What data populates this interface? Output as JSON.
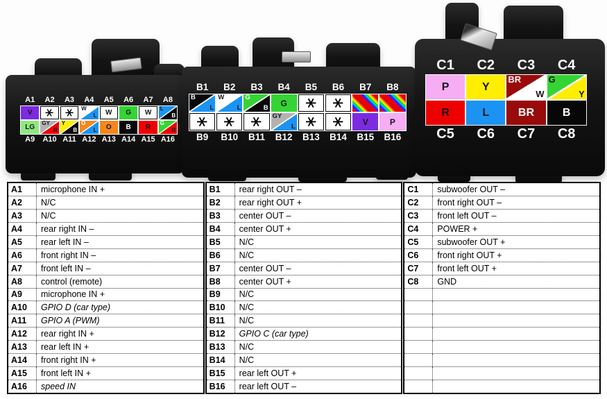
{
  "colors": {
    "V": "#7c2be0",
    "LG": "#8fe87f",
    "GY": "#b2b2b2",
    "Y": "#ffee00",
    "O": "#f5871f",
    "B": "#070707",
    "R": "#ef0000",
    "G": "#35d435",
    "L": "#1b93f2",
    "W": "#ffffff",
    "P": "#f6adf3",
    "BR": "#990a0a"
  },
  "star_char": "∗",
  "connectors": [
    {
      "id": "A",
      "top_labels": [
        "A1",
        "A2",
        "A3",
        "A4",
        "A5",
        "A6",
        "A7",
        "A8"
      ],
      "bottom_labels": [
        "A9",
        "A10",
        "A11",
        "A12",
        "A13",
        "A14",
        "A15",
        "A16"
      ],
      "rows": [
        [
          {
            "id": "A1",
            "type": "solid",
            "c": "V",
            "t": "V"
          },
          {
            "id": "A2",
            "type": "star"
          },
          {
            "id": "A3",
            "type": "star"
          },
          {
            "id": "A4",
            "type": "split",
            "c1": "W",
            "c2": "L",
            "t1": "W",
            "t2": "L"
          },
          {
            "id": "A5",
            "type": "solid",
            "c": "W",
            "t": "W"
          },
          {
            "id": "A6",
            "type": "solid",
            "c": "G",
            "t": "G"
          },
          {
            "id": "A7",
            "type": "solid",
            "c": "W",
            "t": "W"
          },
          {
            "id": "A8",
            "type": "split",
            "c1": "L",
            "c2": "B",
            "t1": "L",
            "t2": "B"
          }
        ],
        [
          {
            "id": "A9",
            "type": "solid",
            "c": "LG",
            "t": "LG"
          },
          {
            "id": "A10",
            "type": "split",
            "c1": "GY",
            "c2": "R",
            "t1": "GY",
            "t2": "R"
          },
          {
            "id": "A11",
            "type": "split",
            "c1": "Y",
            "c2": "B",
            "t1": "Y",
            "t2": "B"
          },
          {
            "id": "A12",
            "type": "split",
            "c1": "O",
            "c2": "L",
            "t1": "O",
            "t2": "L",
            "t1c": "#ffffff"
          },
          {
            "id": "A13",
            "type": "solid",
            "c": "O",
            "t": "O"
          },
          {
            "id": "A14",
            "type": "solid",
            "c": "B",
            "t": "B"
          },
          {
            "id": "A15",
            "type": "solid",
            "c": "R",
            "t": "R"
          },
          {
            "id": "A16",
            "type": "split",
            "c1": "G",
            "c2": "R",
            "t1": "G",
            "t2": "R",
            "t1c": "#ffffff"
          }
        ]
      ]
    },
    {
      "id": "B",
      "top_labels": [
        "B1",
        "B2",
        "B3",
        "B4",
        "B5",
        "B6",
        "B7",
        "B8"
      ],
      "bottom_labels": [
        "B9",
        "B10",
        "B11",
        "B12",
        "B13",
        "B14",
        "B15",
        "B16"
      ],
      "rows": [
        [
          {
            "id": "B1",
            "type": "split",
            "c1": "B",
            "c2": "L",
            "t1": "B",
            "t2": "L"
          },
          {
            "id": "B2",
            "type": "split",
            "c1": "W",
            "c2": "L",
            "t1": "W",
            "t2": "L"
          },
          {
            "id": "B3",
            "type": "split",
            "c1": "G",
            "c2": "B",
            "t1": "G",
            "t2": "B",
            "t1c": "#ffffff"
          },
          {
            "id": "B4",
            "type": "solid",
            "c": "G",
            "t": "G"
          },
          {
            "id": "B5",
            "type": "star"
          },
          {
            "id": "B6",
            "type": "star"
          },
          {
            "id": "B7",
            "type": "rainbow"
          },
          {
            "id": "B8",
            "type": "rainbow"
          }
        ],
        [
          {
            "id": "B9",
            "type": "star"
          },
          {
            "id": "B10",
            "type": "star"
          },
          {
            "id": "B11",
            "type": "star"
          },
          {
            "id": "B12",
            "type": "split",
            "c1": "GY",
            "c2": "L",
            "t1": "GY",
            "t2": "L"
          },
          {
            "id": "B13",
            "type": "star"
          },
          {
            "id": "B14",
            "type": "star"
          },
          {
            "id": "B15",
            "type": "solid",
            "c": "V",
            "t": "V"
          },
          {
            "id": "B16",
            "type": "solid",
            "c": "P",
            "t": "P"
          }
        ]
      ]
    },
    {
      "id": "C",
      "top_labels": [
        "C1",
        "C2",
        "C3",
        "C4"
      ],
      "bottom_labels": [
        "C5",
        "C6",
        "C7",
        "C8"
      ],
      "rows": [
        [
          {
            "id": "C1",
            "type": "solid",
            "c": "P",
            "t": "P"
          },
          {
            "id": "C2",
            "type": "solid",
            "c": "Y",
            "t": "Y"
          },
          {
            "id": "C3",
            "type": "split",
            "c1": "BR",
            "c2": "W",
            "t1": "BR",
            "t2": "W"
          },
          {
            "id": "C4",
            "type": "split",
            "c1": "G",
            "c2": "Y",
            "t1": "G",
            "t2": "Y"
          }
        ],
        [
          {
            "id": "C5",
            "type": "solid",
            "c": "R",
            "t": "R"
          },
          {
            "id": "C6",
            "type": "solid",
            "c": "L",
            "t": "L"
          },
          {
            "id": "C7",
            "type": "solid",
            "c": "BR",
            "t": "BR"
          },
          {
            "id": "C8",
            "type": "solid",
            "c": "B",
            "t": "B"
          }
        ]
      ]
    }
  ],
  "table": {
    "groups": [
      {
        "id": "A",
        "rows": [
          {
            "pin": "A1",
            "desc": "microphone IN +"
          },
          {
            "pin": "A2",
            "desc": "N/C"
          },
          {
            "pin": "A3",
            "desc": "N/C"
          },
          {
            "pin": "A4",
            "desc": "rear right IN –"
          },
          {
            "pin": "A5",
            "desc": "rear left IN –"
          },
          {
            "pin": "A6",
            "desc": "front right IN –"
          },
          {
            "pin": "A7",
            "desc": "front left IN –"
          },
          {
            "pin": "A8",
            "desc": "control (remote)"
          },
          {
            "pin": "A9",
            "desc": "microphone IN +"
          },
          {
            "pin": "A10",
            "desc": "GPIO D (car type)",
            "italic": true
          },
          {
            "pin": "A11",
            "desc": "GPIO A (PWM)",
            "italic": true
          },
          {
            "pin": "A12",
            "desc": "rear right IN +"
          },
          {
            "pin": "A13",
            "desc": "rear left IN +"
          },
          {
            "pin": "A14",
            "desc": "front right IN +"
          },
          {
            "pin": "A15",
            "desc": "front left IN +"
          },
          {
            "pin": "A16",
            "desc": "speed IN",
            "italic": true
          }
        ]
      },
      {
        "id": "B",
        "rows": [
          {
            "pin": "B1",
            "desc": "rear right OUT –"
          },
          {
            "pin": "B2",
            "desc": "rear right OUT +"
          },
          {
            "pin": "B3",
            "desc": "center OUT –"
          },
          {
            "pin": "B4",
            "desc": "center OUT +"
          },
          {
            "pin": "B5",
            "desc": "N/C"
          },
          {
            "pin": "B6",
            "desc": "N/C"
          },
          {
            "pin": "B7",
            "desc": "center OUT –"
          },
          {
            "pin": "B8",
            "desc": "center OUT +"
          },
          {
            "pin": "B9",
            "desc": "N/C"
          },
          {
            "pin": "B10",
            "desc": "N/C"
          },
          {
            "pin": "B11",
            "desc": "N/C"
          },
          {
            "pin": "B12",
            "desc": "GPIO C (car type)",
            "italic": true
          },
          {
            "pin": "B13",
            "desc": "N/C"
          },
          {
            "pin": "B14",
            "desc": "N/C"
          },
          {
            "pin": "B15",
            "desc": "rear left OUT +"
          },
          {
            "pin": "B16",
            "desc": "rear left OUT –"
          }
        ]
      },
      {
        "id": "C",
        "rows": [
          {
            "pin": "C1",
            "desc": "subwoofer OUT –"
          },
          {
            "pin": "C2",
            "desc": "front right OUT –"
          },
          {
            "pin": "C3",
            "desc": "front left OUT –"
          },
          {
            "pin": "C4",
            "desc": "POWER +"
          },
          {
            "pin": "C5",
            "desc": "subwoofer OUT +"
          },
          {
            "pin": "C6",
            "desc": "front right OUT +"
          },
          {
            "pin": "C7",
            "desc": "front left OUT +"
          },
          {
            "pin": "C8",
            "desc": "GND"
          },
          {
            "pin": "",
            "desc": ""
          },
          {
            "pin": "",
            "desc": ""
          },
          {
            "pin": "",
            "desc": ""
          },
          {
            "pin": "",
            "desc": ""
          },
          {
            "pin": "",
            "desc": ""
          },
          {
            "pin": "",
            "desc": ""
          },
          {
            "pin": "",
            "desc": ""
          },
          {
            "pin": "",
            "desc": ""
          }
        ]
      }
    ]
  }
}
